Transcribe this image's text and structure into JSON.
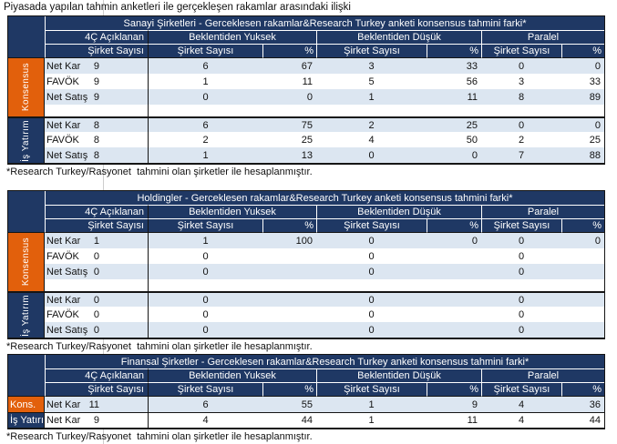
{
  "page_title": "Piyasada yapılan tahmin anketleri ile gerçekleşen rakamlar arasındaki ilişki",
  "colors": {
    "header_navy": "#1F3864",
    "accent_orange": "#E2600C",
    "row_shade": "#DCE6F1",
    "grid_line_gray": "#CDCDCD"
  },
  "column_headers": {
    "announced_group": "4Ç Açıklanan",
    "higher_group": "Beklentiden Yuksek",
    "lower_group": "Beklentiden Düşük",
    "parallel_group": "Paralel",
    "company_count": "Şirket Sayısı",
    "percent": "%"
  },
  "tables": [
    {
      "title": "Sanayi Şirketleri - Gerceklesen rakamlar&Research Turkey anketi konsensus tahmini farki*",
      "footnote": "*Research Turkey/Rasyonet  tahmini olan şirketler ile hesaplanmıştır.",
      "sections": [
        {
          "label": "Konsensus",
          "label_style": "vertical-orange",
          "trailing_empty_row": true,
          "rows": [
            {
              "metric": "Net Kar",
              "values": [
                "9",
                "6",
                "67",
                "3",
                "33",
                "0",
                "0"
              ]
            },
            {
              "metric": "FAVÖK",
              "values": [
                "9",
                "1",
                "11",
                "5",
                "56",
                "3",
                "33"
              ]
            },
            {
              "metric": "Net Satış",
              "values": [
                "9",
                "0",
                "0",
                "1",
                "11",
                "8",
                "89"
              ]
            }
          ]
        },
        {
          "label": "İş Yatırım",
          "label_style": "vertical-navy",
          "trailing_empty_row": false,
          "rows": [
            {
              "metric": "Net Kar",
              "values": [
                "8",
                "6",
                "75",
                "2",
                "25",
                "0",
                "0"
              ]
            },
            {
              "metric": "FAVÖK",
              "values": [
                "8",
                "2",
                "25",
                "4",
                "50",
                "2",
                "25"
              ]
            },
            {
              "metric": "Net Satış",
              "values": [
                "8",
                "1",
                "13",
                "0",
                "0",
                "7",
                "88"
              ]
            }
          ]
        }
      ]
    },
    {
      "title": "Holdingler - Gerceklesen rakamlar&Research Turkey anketi konsensus tahmini farki*",
      "footnote": "*Research Turkey/Rasyonet  tahmini olan şirketler ile hesaplanmıştır.",
      "sections": [
        {
          "label": "Konsensus",
          "label_style": "vertical-orange",
          "trailing_empty_row": true,
          "rows": [
            {
              "metric": "Net Kar",
              "values": [
                "1",
                "1",
                "100",
                "0",
                "0",
                "0",
                "0"
              ]
            },
            {
              "metric": "FAVÖK",
              "values": [
                "0",
                "0",
                "",
                "0",
                "",
                "0",
                ""
              ]
            },
            {
              "metric": "Net Satış",
              "values": [
                "0",
                "0",
                "",
                "0",
                "",
                "0",
                ""
              ]
            }
          ]
        },
        {
          "label": "İş Yatırım",
          "label_style": "vertical-navy",
          "trailing_empty_row": false,
          "rows": [
            {
              "metric": "Net Kar",
              "values": [
                "0",
                "0",
                "",
                "0",
                "",
                "0",
                ""
              ]
            },
            {
              "metric": "FAVÖK",
              "values": [
                "0",
                "0",
                "",
                "0",
                "",
                "0",
                ""
              ]
            },
            {
              "metric": "Net Satış",
              "values": [
                "0",
                "0",
                "",
                "0",
                "",
                "0",
                ""
              ]
            }
          ]
        }
      ]
    },
    {
      "title": "Finansal Şirketler - Gerceklesen rakamlar&Research Turkey anketi konsensus tahmini farki*",
      "footnote": "*Research Turkey/Rasyonet  tahmini olan şirketler ile hesaplanmıştır.",
      "sections": [
        {
          "label": "Kons.",
          "label_style": "horizontal-orange",
          "trailing_empty_row": false,
          "rows": [
            {
              "metric": "Net Kar",
              "values": [
                "11",
                "6",
                "55",
                "1",
                "9",
                "4",
                "36"
              ]
            }
          ]
        },
        {
          "label": "İş Yatırım",
          "label_style": "horizontal-navy",
          "trailing_empty_row": false,
          "rows": [
            {
              "metric": "Net Kar",
              "values": [
                "9",
                "4",
                "44",
                "1",
                "11",
                "4",
                "44"
              ]
            }
          ]
        }
      ]
    }
  ]
}
